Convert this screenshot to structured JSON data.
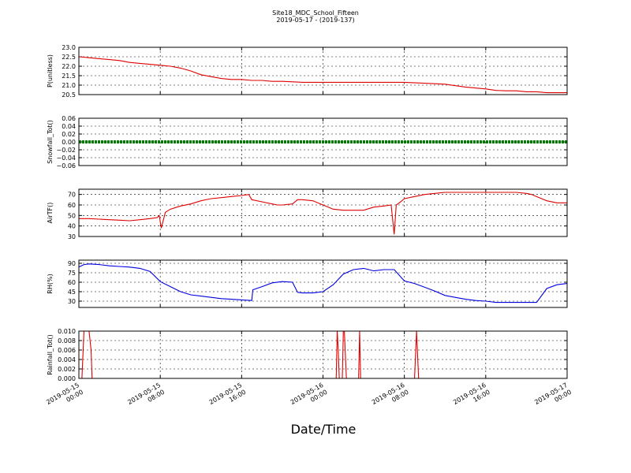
{
  "figure": {
    "title": "Site18_MDC_School_Fifteen",
    "subtitle": "2019-05-17 - (2019-137)",
    "xlabel": "Date/Time"
  },
  "chart_data": [
    {
      "type": "line",
      "ylabel": "P(unitless)",
      "ylim": [
        20.5,
        23.0
      ],
      "yticks": [
        "23.0",
        "22.5",
        "22.0",
        "21.5",
        "21.0",
        "20.5"
      ],
      "ytick_values": [
        23.0,
        22.5,
        22.0,
        21.5,
        21.0,
        20.5
      ],
      "xlim": [
        0,
        48
      ],
      "grid": true,
      "series": [
        {
          "color": "#e00000",
          "x": [
            0,
            1,
            2,
            3,
            4,
            5,
            6,
            7,
            8,
            9,
            10,
            11,
            12,
            13,
            14,
            15,
            16,
            17,
            18,
            19,
            20,
            22,
            24,
            26,
            28,
            30,
            32,
            34,
            36,
            38,
            40,
            41,
            42,
            43,
            44,
            45,
            46,
            47,
            48
          ],
          "values": [
            22.5,
            22.45,
            22.4,
            22.35,
            22.3,
            22.2,
            22.15,
            22.1,
            22.05,
            22.0,
            21.9,
            21.75,
            21.55,
            21.45,
            21.35,
            21.3,
            21.3,
            21.25,
            21.25,
            21.2,
            21.2,
            21.15,
            21.15,
            21.15,
            21.15,
            21.15,
            21.15,
            21.1,
            21.05,
            20.9,
            20.8,
            20.72,
            20.7,
            20.7,
            20.65,
            20.65,
            20.6,
            20.6,
            20.6
          ]
        }
      ]
    },
    {
      "type": "line",
      "ylabel": "Snowfall_Tot()",
      "ylim": [
        -0.06,
        0.06
      ],
      "yticks": [
        "0.06",
        "0.04",
        "0.02",
        "0.00",
        "−0.02",
        "−0.04",
        "−0.06"
      ],
      "ytick_values": [
        0.06,
        0.04,
        0.02,
        0.0,
        -0.02,
        -0.04,
        -0.06
      ],
      "xlim": [
        0,
        48
      ],
      "grid": true,
      "series": [
        {
          "color": "#007a00",
          "x": [
            0,
            48
          ],
          "values": [
            0.0,
            0.0
          ]
        }
      ]
    },
    {
      "type": "line",
      "ylabel": "AirTF()",
      "ylim": [
        30,
        75
      ],
      "yticks": [
        "70",
        "60",
        "50",
        "40",
        "30"
      ],
      "ytick_values": [
        70,
        60,
        50,
        40,
        30
      ],
      "xlim": [
        0,
        48
      ],
      "grid": true,
      "series": [
        {
          "color": "#e00000",
          "x": [
            0,
            1,
            2,
            3,
            4,
            5,
            6,
            7,
            7.7,
            7.9,
            8.1,
            8.5,
            9,
            10,
            11,
            12,
            13,
            14,
            15,
            16,
            16.7,
            17,
            18,
            19,
            19.5,
            20,
            21,
            21.5,
            22,
            23,
            24,
            25,
            26,
            27,
            28,
            29,
            30,
            30.7,
            31,
            31.2,
            31.5,
            32,
            33,
            34,
            35,
            36,
            37,
            38,
            39,
            40,
            41,
            42,
            43,
            44,
            44.5,
            45,
            46,
            47,
            48
          ],
          "values": [
            47,
            47,
            46.5,
            46,
            45.5,
            45,
            46,
            47,
            48,
            50,
            38,
            53,
            56,
            59,
            61,
            64,
            66,
            67,
            68,
            69,
            70,
            65,
            63,
            61,
            60,
            60,
            61,
            65,
            65,
            64,
            60,
            56,
            55,
            55,
            55,
            58,
            59,
            60,
            32,
            60,
            62,
            66,
            68,
            70,
            71,
            72,
            72,
            72,
            72,
            72,
            72,
            72,
            72,
            71,
            70,
            68,
            64,
            62,
            62
          ]
        }
      ]
    },
    {
      "type": "line",
      "ylabel": "RH(%)",
      "ylim": [
        20,
        95
      ],
      "yticks": [
        "90",
        "75",
        "60",
        "45",
        "30"
      ],
      "ytick_values": [
        90,
        75,
        60,
        45,
        30
      ],
      "xlim": [
        0,
        48
      ],
      "grid": true,
      "series": [
        {
          "color": "#0000e0",
          "x": [
            0,
            0.5,
            1,
            2,
            3,
            4,
            5,
            6,
            7,
            8,
            9,
            10,
            11,
            12,
            13,
            14,
            15,
            16,
            17,
            17.1,
            18,
            19,
            20,
            21,
            21.5,
            22,
            23,
            24,
            25,
            26,
            27,
            28,
            29,
            30,
            31,
            32,
            33,
            34,
            35,
            36,
            37,
            38,
            39,
            40,
            41,
            42,
            43,
            44,
            45,
            46,
            47,
            48
          ],
          "values": [
            84,
            88,
            89,
            88,
            86,
            85,
            84,
            82,
            77,
            61,
            53,
            45,
            40,
            38,
            36,
            34,
            33,
            32,
            31,
            48,
            53,
            59,
            61,
            60,
            44,
            43,
            43,
            45,
            56,
            73,
            80,
            82,
            78,
            80,
            80,
            62,
            58,
            52,
            46,
            39,
            36,
            33,
            31,
            30,
            28,
            28,
            28,
            28,
            28,
            50,
            56,
            58
          ]
        }
      ]
    },
    {
      "type": "line",
      "ylabel": "Rainfall_Tot()",
      "ylim": [
        0.0,
        0.01
      ],
      "yticks": [
        "0.010",
        "0.008",
        "0.006",
        "0.004",
        "0.002",
        "0.000"
      ],
      "ytick_values": [
        0.01,
        0.008,
        0.006,
        0.004,
        0.002,
        0.0
      ],
      "xlim": [
        0,
        48
      ],
      "grid": true,
      "xticks": [
        "2019-05-15\n00:00",
        "2019-05-15\n08:00",
        "2019-05-15\n16:00",
        "2019-05-16\n00:00",
        "2019-05-16\n08:00",
        "2019-05-16\n16:00",
        "2019-05-17\n00:00"
      ],
      "xtick_values": [
        0,
        8,
        16,
        24,
        32,
        40,
        48
      ],
      "series": [
        {
          "color": "#e00000",
          "x": [
            0,
            0.3,
            0.5,
            0.7,
            1.0,
            1.2,
            1.3,
            25.3,
            25.4,
            25.5,
            25.6,
            25.9,
            26.0,
            26.1,
            26.3,
            27.5,
            27.6,
            27.7,
            33.0,
            33.2,
            33.4,
            48
          ],
          "values": [
            0,
            0,
            0.01,
            0.01,
            0.01,
            0.006,
            0,
            0,
            0.01,
            0.006,
            0,
            0,
            0.01,
            0.01,
            0,
            0,
            0.01,
            0,
            0,
            0.01,
            0,
            0
          ]
        }
      ]
    }
  ]
}
